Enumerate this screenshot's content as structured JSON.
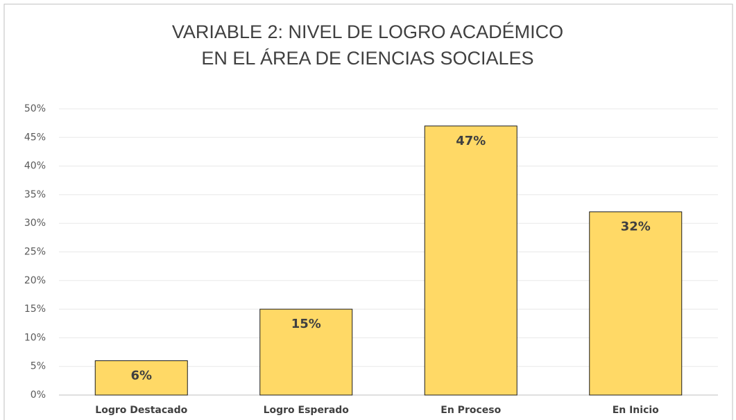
{
  "chart_data": {
    "type": "bar",
    "title": [
      "VARIABLE 2: NIVEL DE LOGRO ACADÉMICO",
      "EN EL ÁREA DE CIENCIAS SOCIALES"
    ],
    "categories": [
      "Logro Destacado",
      "Logro Esperado",
      "En Proceso",
      "En Inicio"
    ],
    "values": [
      6,
      15,
      47,
      32
    ],
    "value_labels": [
      "6%",
      "15%",
      "47%",
      "32%"
    ],
    "color": "#FFD966",
    "ylim": [
      0,
      50
    ],
    "yticks": [
      {
        "value": 0,
        "label": "0%"
      },
      {
        "value": 5,
        "label": "5%"
      },
      {
        "value": 10,
        "label": "10%"
      },
      {
        "value": 15,
        "label": "15%"
      },
      {
        "value": 20,
        "label": "20%"
      },
      {
        "value": 25,
        "label": "25%"
      },
      {
        "value": 30,
        "label": "30%"
      },
      {
        "value": 35,
        "label": "35%"
      },
      {
        "value": 40,
        "label": "40%"
      },
      {
        "value": 45,
        "label": "45%"
      },
      {
        "value": 50,
        "label": "50%"
      }
    ],
    "grid": true
  }
}
